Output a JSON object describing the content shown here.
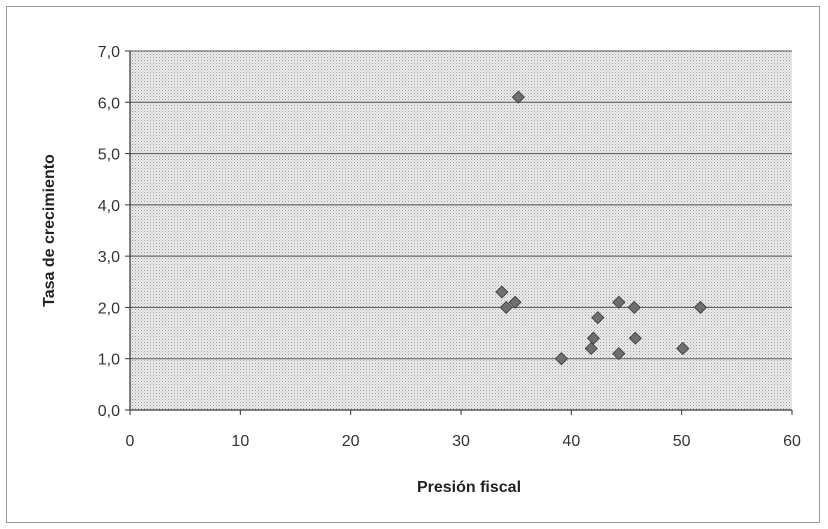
{
  "chart_data": {
    "type": "scatter",
    "title": "",
    "xlabel": "Presión fiscal",
    "ylabel": "Tasa de crecimiento",
    "xlim": [
      0,
      60
    ],
    "ylim": [
      0,
      7
    ],
    "xticks": [
      0,
      10,
      20,
      30,
      40,
      50,
      60
    ],
    "yticks": [
      0,
      1,
      2,
      3,
      4,
      5,
      6,
      7
    ],
    "xtick_labels": [
      "0",
      "10",
      "20",
      "30",
      "40",
      "50",
      "60"
    ],
    "ytick_labels": [
      "0,0",
      "1,0",
      "2,0",
      "3,0",
      "4,0",
      "5,0",
      "6,0",
      "7,0"
    ],
    "grid": "horizontal",
    "legend": "none",
    "marker": "diamond",
    "colors": {
      "marker": "#6f6f6f",
      "gridline": "#555555",
      "plot_background": "#e6e6e6"
    },
    "points": [
      {
        "x": 35.2,
        "y": 6.1
      },
      {
        "x": 33.7,
        "y": 2.3
      },
      {
        "x": 34.1,
        "y": 2.0
      },
      {
        "x": 34.9,
        "y": 2.1
      },
      {
        "x": 39.1,
        "y": 1.0
      },
      {
        "x": 41.8,
        "y": 1.2
      },
      {
        "x": 42.0,
        "y": 1.4
      },
      {
        "x": 42.4,
        "y": 1.8
      },
      {
        "x": 44.3,
        "y": 2.1
      },
      {
        "x": 44.3,
        "y": 1.1
      },
      {
        "x": 45.7,
        "y": 2.0
      },
      {
        "x": 45.8,
        "y": 1.4
      },
      {
        "x": 50.1,
        "y": 1.2
      },
      {
        "x": 51.7,
        "y": 2.0
      }
    ]
  }
}
